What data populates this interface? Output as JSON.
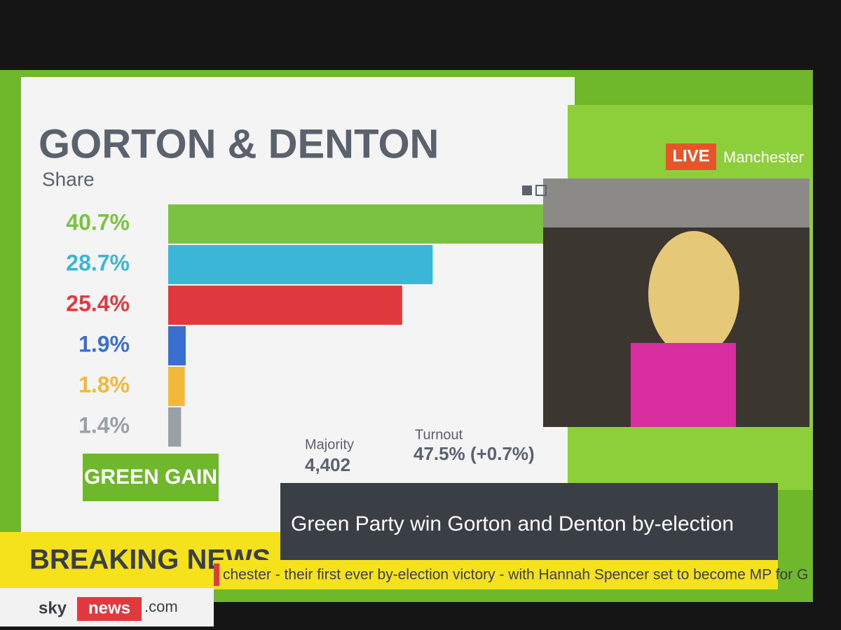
{
  "chart_data": {
    "type": "bar",
    "orientation": "horizontal",
    "title": "GORTON & DENTON",
    "subtitle": "Share",
    "values": [
      40.7,
      28.7,
      25.4,
      1.9,
      1.8,
      1.4
    ],
    "value_labels": [
      "40.7%",
      "28.7%",
      "25.4%",
      "1.9%",
      "1.8%",
      "1.4%"
    ],
    "colors": [
      "#7cc242",
      "#3bb6d6",
      "#e03a3e",
      "#3a6fd0",
      "#f2b83a",
      "#9aa0a6"
    ]
  },
  "result": "GREEN GAIN",
  "majority": {
    "label": "Majority",
    "value": "4,402"
  },
  "turnout": {
    "label": "Turnout",
    "value": "47.5% (+0.7%)"
  },
  "live": {
    "badge": "LIVE",
    "location": "Manchester"
  },
  "banner": {
    "label": "BREAKING NEWS",
    "headline": "Green Party win Gorton and Denton by-election",
    "ticker": "chester - their first ever by-election victory - with Hannah Spencer set to become MP for G"
  },
  "logo": {
    "sky": "sky",
    "news": "news",
    "domain": ".com"
  }
}
